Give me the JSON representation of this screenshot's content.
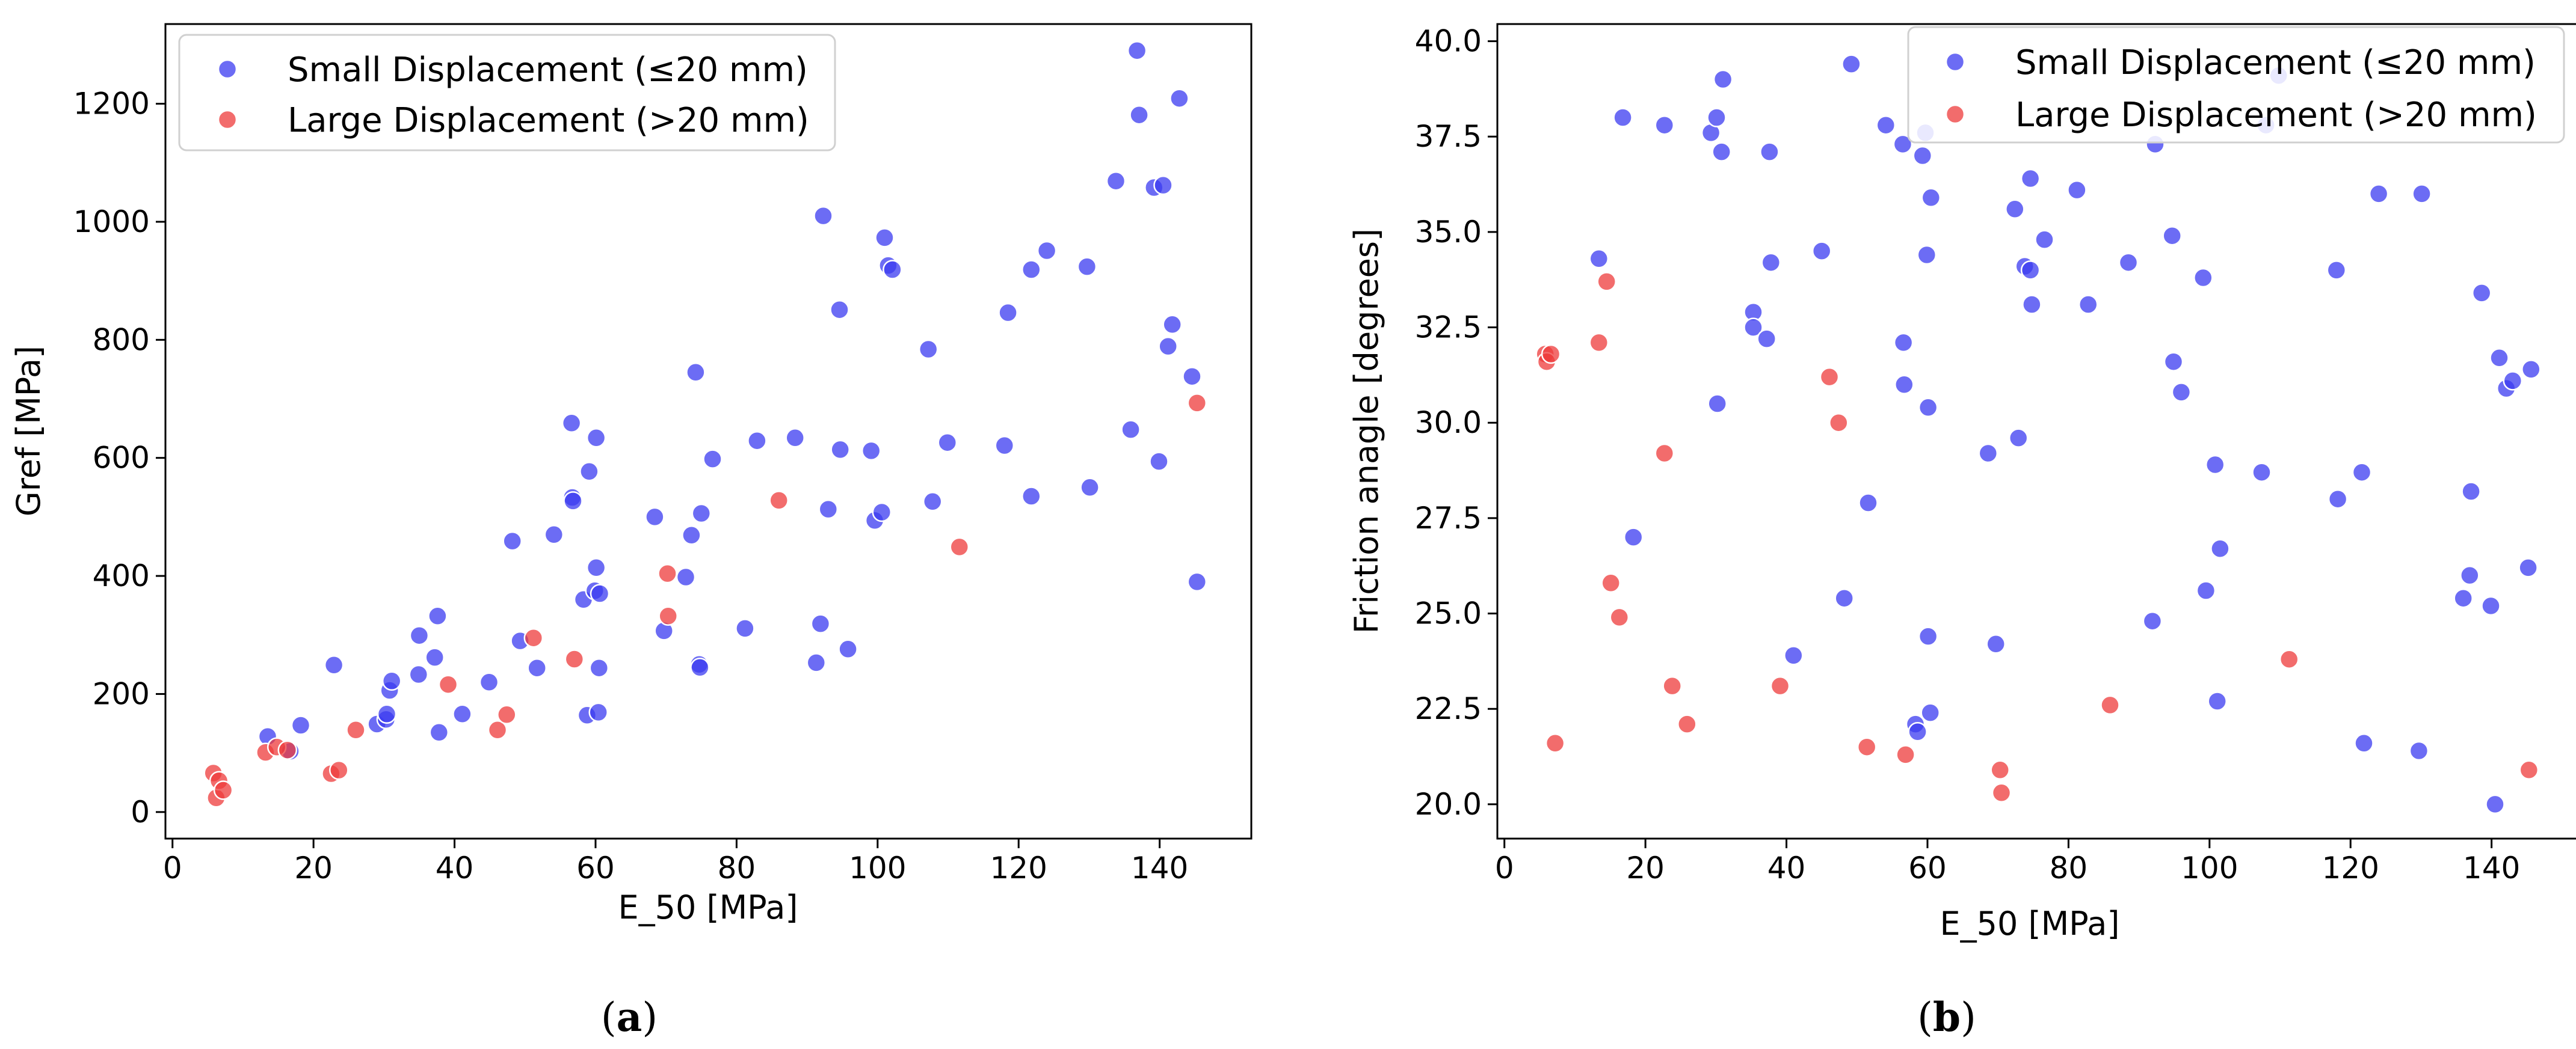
{
  "chart_data": [
    {
      "type": "scatter",
      "panel_label": "a",
      "xlabel": "E_50 [MPa]",
      "ylabel": "Gref [MPa]",
      "xlim": [
        -1,
        153
      ],
      "ylim": [
        -45,
        1335
      ],
      "xticks": [
        0,
        20,
        40,
        60,
        80,
        100,
        120,
        140
      ],
      "yticks": [
        0,
        200,
        400,
        600,
        800,
        1000,
        1200
      ],
      "legend": "upper-left",
      "series": [
        {
          "name": "Small Displacement (≤20 mm)",
          "color": "#3b3bf0",
          "points": [
            [
              13.5,
              128
            ],
            [
              16.7,
              103
            ],
            [
              18.2,
              147
            ],
            [
              22.9,
              249
            ],
            [
              29,
              149
            ],
            [
              30.3,
              157
            ],
            [
              30.4,
              166
            ],
            [
              30.8,
              206
            ],
            [
              31.1,
              222
            ],
            [
              34.9,
              233
            ],
            [
              35,
              299
            ],
            [
              37.2,
              262
            ],
            [
              37.6,
              332
            ],
            [
              37.8,
              135
            ],
            [
              41.1,
              166
            ],
            [
              44.9,
              220
            ],
            [
              48.2,
              459
            ],
            [
              49.3,
              290
            ],
            [
              51.7,
              244
            ],
            [
              54.1,
              470
            ],
            [
              56.6,
              659
            ],
            [
              56.7,
              533
            ],
            [
              56.8,
              527
            ],
            [
              58.3,
              360
            ],
            [
              58.8,
              164
            ],
            [
              59.1,
              577
            ],
            [
              59.9,
              375
            ],
            [
              60.1,
              634
            ],
            [
              60.1,
              414
            ],
            [
              60.4,
              169
            ],
            [
              60.5,
              244
            ],
            [
              60.6,
              370
            ],
            [
              68.4,
              500
            ],
            [
              69.7,
              307
            ],
            [
              72.8,
              398
            ],
            [
              73.6,
              469
            ],
            [
              74.2,
              745
            ],
            [
              74.7,
              250
            ],
            [
              74.8,
              245
            ],
            [
              75,
              506
            ],
            [
              76.6,
              598
            ],
            [
              81.2,
              311
            ],
            [
              82.9,
              629
            ],
            [
              88.3,
              634
            ],
            [
              91.3,
              253
            ],
            [
              91.9,
              319
            ],
            [
              92.3,
              1010
            ],
            [
              93,
              513
            ],
            [
              94.6,
              851
            ],
            [
              94.7,
              614
            ],
            [
              95.8,
              276
            ],
            [
              99.1,
              612
            ],
            [
              99.6,
              494
            ],
            [
              100.6,
              508
            ],
            [
              101,
              973
            ],
            [
              101.5,
              926
            ],
            [
              102.1,
              919
            ],
            [
              107.2,
              784
            ],
            [
              107.8,
              526
            ],
            [
              109.9,
              626
            ],
            [
              118,
              621
            ],
            [
              118.5,
              846
            ],
            [
              121.8,
              535
            ],
            [
              121.8,
              919
            ],
            [
              124,
              951
            ],
            [
              129.7,
              924
            ],
            [
              130.1,
              550
            ],
            [
              133.8,
              1069
            ],
            [
              135.9,
              648
            ],
            [
              136.8,
              1290
            ],
            [
              137.1,
              1181
            ],
            [
              139.2,
              1058
            ],
            [
              139.9,
              594
            ],
            [
              140.5,
              1062
            ],
            [
              141.2,
              789
            ],
            [
              141.8,
              826
            ],
            [
              142.8,
              1209
            ],
            [
              144.6,
              738
            ],
            [
              145.3,
              390
            ]
          ]
        },
        {
          "name": "Large Displacement (>20 mm)",
          "color": "#ee3b3b",
          "points": [
            [
              5.8,
              66
            ],
            [
              6.2,
              24
            ],
            [
              6.6,
              53
            ],
            [
              7.2,
              37
            ],
            [
              13.2,
              101
            ],
            [
              14.8,
              110
            ],
            [
              16.3,
              105
            ],
            [
              22.5,
              65
            ],
            [
              23.6,
              71
            ],
            [
              26,
              139
            ],
            [
              39.1,
              216
            ],
            [
              46.1,
              139
            ],
            [
              47.4,
              165
            ],
            [
              51.2,
              295
            ],
            [
              57,
              259
            ],
            [
              70.2,
              404
            ],
            [
              70.3,
              332
            ],
            [
              86,
              528
            ],
            [
              111.6,
              449
            ],
            [
              145.3,
              693
            ]
          ]
        }
      ]
    },
    {
      "type": "scatter",
      "panel_label": "b",
      "xlabel": "E_50 [MPa]",
      "ylabel": "Friction anagle [degrees]",
      "xlim": [
        -1,
        153
      ],
      "ylim": [
        19.1,
        40.45
      ],
      "xticks": [
        0,
        20,
        40,
        60,
        80,
        100,
        120,
        140
      ],
      "yticks": [
        "20.0",
        "22.5",
        "25.0",
        "27.5",
        "30.0",
        "32.5",
        "35.0",
        "37.5",
        "40.0"
      ],
      "legend": "upper-right",
      "series": [
        {
          "name": "Small Displacement (≤20 mm)",
          "color": "#3b3bf0",
          "points": [
            [
              13.4,
              34.3
            ],
            [
              16.8,
              38
            ],
            [
              18.3,
              27
            ],
            [
              22.7,
              37.8
            ],
            [
              29.3,
              37.6
            ],
            [
              30.1,
              38
            ],
            [
              30.2,
              30.5
            ],
            [
              30.8,
              37.1
            ],
            [
              31,
              39
            ],
            [
              35.3,
              32.9
            ],
            [
              35.3,
              32.5
            ],
            [
              37.2,
              32.2
            ],
            [
              37.6,
              37.1
            ],
            [
              37.8,
              34.2
            ],
            [
              41,
              23.9
            ],
            [
              45,
              34.5
            ],
            [
              48.2,
              25.4
            ],
            [
              49.2,
              39.4
            ],
            [
              51.6,
              27.9
            ],
            [
              54.1,
              37.8
            ],
            [
              56.5,
              37.3
            ],
            [
              56.6,
              32.1
            ],
            [
              56.7,
              31
            ],
            [
              58.3,
              22.1
            ],
            [
              58.6,
              21.9
            ],
            [
              59.3,
              37
            ],
            [
              59.7,
              37.6
            ],
            [
              59.9,
              34.4
            ],
            [
              60.1,
              30.4
            ],
            [
              60.1,
              24.4
            ],
            [
              60.4,
              22.4
            ],
            [
              60.5,
              35.9
            ],
            [
              68.6,
              29.2
            ],
            [
              69.7,
              24.2
            ],
            [
              72.4,
              35.6
            ],
            [
              72.9,
              29.6
            ],
            [
              73.8,
              34.1
            ],
            [
              74.6,
              34
            ],
            [
              74.6,
              36.4
            ],
            [
              74.8,
              33.1
            ],
            [
              76.6,
              34.8
            ],
            [
              81.2,
              36.1
            ],
            [
              82.8,
              33.1
            ],
            [
              88.5,
              34.2
            ],
            [
              91.9,
              24.8
            ],
            [
              92.3,
              37.3
            ],
            [
              94.7,
              34.9
            ],
            [
              94.9,
              31.6
            ],
            [
              96,
              30.8
            ],
            [
              99.1,
              33.8
            ],
            [
              99.5,
              25.6
            ],
            [
              100.8,
              28.9
            ],
            [
              101.1,
              22.7
            ],
            [
              101.5,
              26.7
            ],
            [
              107.4,
              28.7
            ],
            [
              108,
              37.8
            ],
            [
              109.8,
              39.1
            ],
            [
              118,
              34
            ],
            [
              118.2,
              28
            ],
            [
              121.6,
              28.7
            ],
            [
              121.9,
              21.6
            ],
            [
              124,
              36
            ],
            [
              129.7,
              21.4
            ],
            [
              130.1,
              36
            ],
            [
              136,
              25.4
            ],
            [
              136.9,
              26
            ],
            [
              137.1,
              28.2
            ],
            [
              138.6,
              33.4
            ],
            [
              139.9,
              25.2
            ],
            [
              140.5,
              20
            ],
            [
              141.1,
              31.7
            ],
            [
              142.1,
              30.9
            ],
            [
              143,
              31.1
            ],
            [
              145.2,
              26.2
            ],
            [
              145.6,
              31.4
            ]
          ]
        },
        {
          "name": "Large Displacement (>20 mm)",
          "color": "#ee3b3b",
          "points": [
            [
              5.8,
              31.8
            ],
            [
              6,
              31.6
            ],
            [
              6.6,
              31.8
            ],
            [
              7.2,
              21.6
            ],
            [
              13.4,
              32.1
            ],
            [
              14.5,
              33.7
            ],
            [
              15.1,
              25.8
            ],
            [
              16.3,
              24.9
            ],
            [
              22.7,
              29.2
            ],
            [
              23.8,
              23.1
            ],
            [
              25.9,
              22.1
            ],
            [
              39.1,
              23.1
            ],
            [
              46.1,
              31.2
            ],
            [
              47.4,
              30
            ],
            [
              51.4,
              21.5
            ],
            [
              56.9,
              21.3
            ],
            [
              70.3,
              20.9
            ],
            [
              70.5,
              20.3
            ],
            [
              85.9,
              22.6
            ],
            [
              111.3,
              23.8
            ],
            [
              145.3,
              20.9
            ]
          ]
        }
      ]
    }
  ]
}
